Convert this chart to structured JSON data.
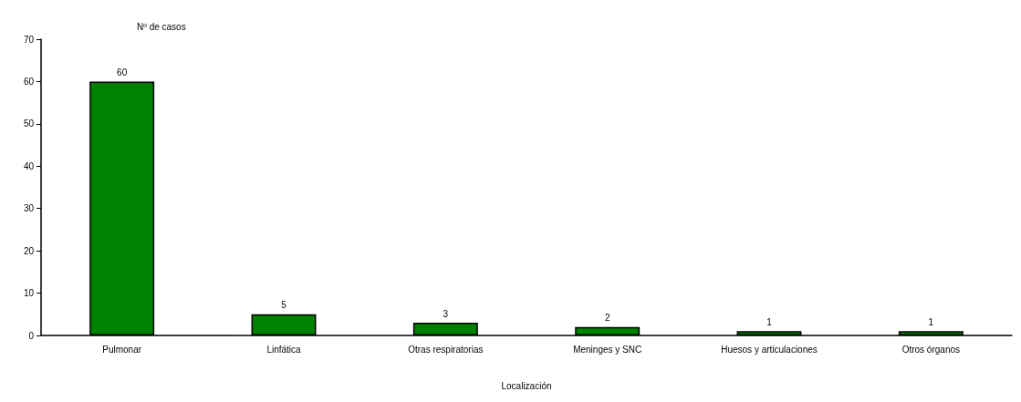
{
  "chart_data": {
    "type": "bar",
    "ylabel": "Nº de casos",
    "xlabel": "Localización",
    "categories": [
      "Pulmonar",
      "Linfática",
      "Otras respiratorias",
      "Meninges y SNC",
      "Huesos y articulaciones",
      "Otros órganos"
    ],
    "values": [
      60,
      5,
      3,
      2,
      1,
      1
    ],
    "color": "#008000",
    "ylim": [
      0,
      70
    ],
    "yticks": [
      0,
      10,
      20,
      30,
      40,
      50,
      60,
      70
    ],
    "data_labels": true
  }
}
